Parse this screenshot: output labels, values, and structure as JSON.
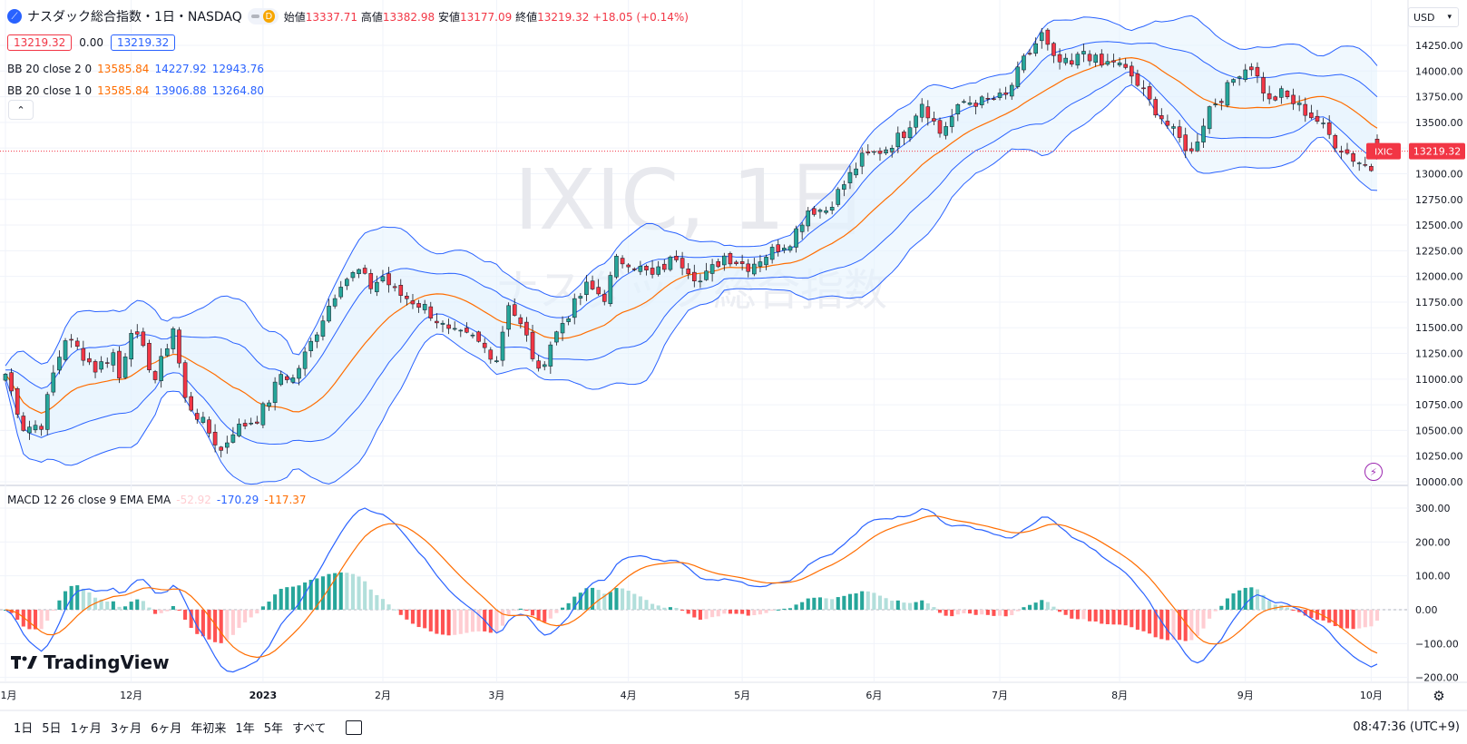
{
  "header": {
    "title": "ナスダック総合指数・1日・NASDAQ",
    "interval_badge": "D",
    "ohlc": {
      "open_label": "始値",
      "open": "13337.71",
      "high_label": "高値",
      "high": "13382.98",
      "low_label": "安値",
      "low": "13177.09",
      "close_label": "終値",
      "close": "13219.32",
      "change": "+18.05 (+0.14%)"
    }
  },
  "price_boxes": {
    "bid": "13219.32",
    "spread": "0.00",
    "ask": "13219.32"
  },
  "indicators": {
    "bb2": {
      "label": "BB 20 close 2 0",
      "basis": "13585.84",
      "upper": "14227.92",
      "lower": "12943.76"
    },
    "bb1": {
      "label": "BB 20 close 1 0",
      "basis": "13585.84",
      "upper": "13906.88",
      "lower": "13264.80"
    },
    "macd": {
      "label": "MACD 12 26 close 9 EMA EMA",
      "hist": "-52.92",
      "macd": "-170.29",
      "signal": "-117.37"
    }
  },
  "watermark": {
    "symbol": "IXIC, 1日",
    "name": "ナスダック総合指数"
  },
  "currency": "USD",
  "last_price_tag": {
    "symbol": "IXIC",
    "price": "13219.32"
  },
  "branding": "TradingView",
  "bottom_bar": {
    "timeframes": [
      "1日",
      "5日",
      "1ヶ月",
      "3ヶ月",
      "6ヶ月",
      "年初来",
      "1年",
      "5年",
      "すべて"
    ],
    "clock": "08:47:36 (UTC+9)"
  },
  "colors": {
    "up": "#26a69a",
    "down": "#f23645",
    "bb_basis": "#ff6d00",
    "bb_band": "#2962ff",
    "band_fill": "#e3f2fd",
    "macd": "#2962ff",
    "signal": "#ff6d00"
  },
  "chart_data": [
    {
      "type": "candlestick",
      "panel": "price",
      "ylim": [
        10000,
        14500
      ],
      "y_ticks": [
        10000,
        10250,
        10500,
        10750,
        11000,
        11250,
        11500,
        11750,
        12000,
        12250,
        12500,
        12750,
        13000,
        13250,
        13500,
        13750,
        14000,
        14250
      ],
      "x_tick_labels": [
        "11月",
        "12月",
        "2023",
        "2月",
        "3月",
        "4月",
        "5月",
        "6月",
        "7月",
        "8月",
        "9月",
        "10月"
      ],
      "x_tick_index": [
        0,
        21,
        43,
        63,
        82,
        104,
        123,
        145,
        166,
        186,
        207,
        228
      ],
      "n_bars": 230,
      "close_anchors": [
        [
          0,
          11050
        ],
        [
          3,
          10530
        ],
        [
          6,
          10560
        ],
        [
          8,
          11050
        ],
        [
          10,
          11400
        ],
        [
          12,
          11300
        ],
        [
          15,
          11100
        ],
        [
          18,
          11250
        ],
        [
          19,
          11010
        ],
        [
          21,
          11500
        ],
        [
          23,
          11270
        ],
        [
          25,
          11000
        ],
        [
          28,
          11500
        ],
        [
          30,
          10800
        ],
        [
          33,
          10570
        ],
        [
          36,
          10300
        ],
        [
          38,
          10500
        ],
        [
          42,
          10620
        ],
        [
          44,
          10800
        ],
        [
          46,
          11050
        ],
        [
          48,
          11000
        ],
        [
          51,
          11350
        ],
        [
          53,
          11600
        ],
        [
          56,
          11950
        ],
        [
          59,
          12050
        ],
        [
          61,
          11900
        ],
        [
          63,
          12000
        ],
        [
          65,
          11850
        ],
        [
          70,
          11700
        ],
        [
          74,
          11450
        ],
        [
          78,
          11400
        ],
        [
          82,
          11200
        ],
        [
          84,
          11750
        ],
        [
          87,
          11400
        ],
        [
          89,
          11050
        ],
        [
          91,
          11350
        ],
        [
          93,
          11550
        ],
        [
          97,
          11900
        ],
        [
          100,
          11800
        ],
        [
          102,
          12150
        ],
        [
          104,
          12150
        ],
        [
          108,
          12000
        ],
        [
          112,
          12200
        ],
        [
          116,
          11950
        ],
        [
          120,
          12200
        ],
        [
          124,
          12100
        ],
        [
          128,
          12250
        ],
        [
          131,
          12350
        ],
        [
          134,
          12650
        ],
        [
          137,
          12650
        ],
        [
          140,
          12900
        ],
        [
          143,
          13150
        ],
        [
          147,
          13250
        ],
        [
          150,
          13400
        ],
        [
          153,
          13700
        ],
        [
          156,
          13400
        ],
        [
          160,
          13700
        ],
        [
          163,
          13700
        ],
        [
          167,
          13750
        ],
        [
          170,
          14100
        ],
        [
          173,
          14350
        ],
        [
          175,
          14100
        ],
        [
          178,
          14050
        ],
        [
          180,
          14200
        ],
        [
          183,
          14050
        ],
        [
          185,
          14100
        ],
        [
          188,
          13950
        ],
        [
          191,
          13700
        ],
        [
          195,
          13400
        ],
        [
          198,
          13200
        ],
        [
          201,
          13650
        ],
        [
          203,
          13750
        ],
        [
          206,
          14000
        ],
        [
          208,
          14050
        ],
        [
          211,
          13700
        ],
        [
          213,
          13780
        ],
        [
          216,
          13650
        ],
        [
          219,
          13520
        ],
        [
          222,
          13300
        ],
        [
          225,
          13150
        ],
        [
          228,
          13050
        ],
        [
          229,
          13219
        ]
      ],
      "last": {
        "open": 13337.71,
        "high": 13382.98,
        "low": 13177.09,
        "close": 13219.32
      },
      "bb_20_2": {
        "basis": 13585.84,
        "upper": 14227.92,
        "lower": 12943.76
      },
      "bb_20_1": {
        "basis": 13585.84,
        "upper": 13906.88,
        "lower": 13264.8
      }
    },
    {
      "type": "line",
      "panel": "macd",
      "ylim": [
        -200,
        300
      ],
      "y_ticks": [
        -200,
        -100,
        0,
        100,
        200,
        300
      ],
      "series": [
        {
          "name": "MACD",
          "last": -170.29
        },
        {
          "name": "Signal",
          "last": -117.37
        },
        {
          "name": "Histogram",
          "last": -52.92
        }
      ]
    }
  ]
}
